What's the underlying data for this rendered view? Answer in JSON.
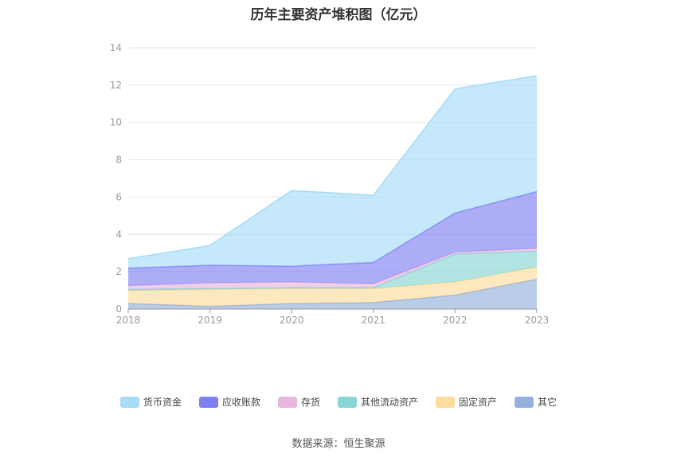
{
  "chart_data": {
    "type": "area",
    "stacked": true,
    "title": "历年主要资产堆积图（亿元）",
    "x": [
      "2018",
      "2019",
      "2020",
      "2021",
      "2022",
      "2023"
    ],
    "ylim": [
      0,
      14
    ],
    "yticks": [
      0,
      2,
      4,
      6,
      8,
      10,
      12,
      14
    ],
    "grid": true,
    "legend_position": "bottom",
    "series": [
      {
        "name": "其它",
        "color": "#94b0dc",
        "values": [
          0.3,
          0.15,
          0.3,
          0.35,
          0.75,
          1.6
        ]
      },
      {
        "name": "固定资产",
        "color": "#fddc9c",
        "values": [
          0.7,
          0.9,
          0.8,
          0.75,
          0.7,
          0.65
        ]
      },
      {
        "name": "其他流动资产",
        "color": "#88d6d6",
        "values": [
          0.05,
          0.05,
          0.05,
          0.05,
          1.5,
          0.85
        ]
      },
      {
        "name": "存货",
        "color": "#e7b7dd",
        "values": [
          0.2,
          0.3,
          0.3,
          0.2,
          0.1,
          0.15
        ]
      },
      {
        "name": "应收账款",
        "color": "#7f7ff2",
        "values": [
          0.95,
          0.95,
          0.85,
          1.15,
          2.1,
          3.05
        ]
      },
      {
        "name": "货币资金",
        "color": "#a6dcf7",
        "values": [
          0.5,
          1.05,
          4.05,
          3.6,
          6.65,
          6.2
        ]
      }
    ]
  },
  "legend_order": [
    "货币资金",
    "应收账款",
    "存货",
    "其他流动资产",
    "固定资产",
    "其它"
  ],
  "source_text": "数据来源：恒生聚源"
}
